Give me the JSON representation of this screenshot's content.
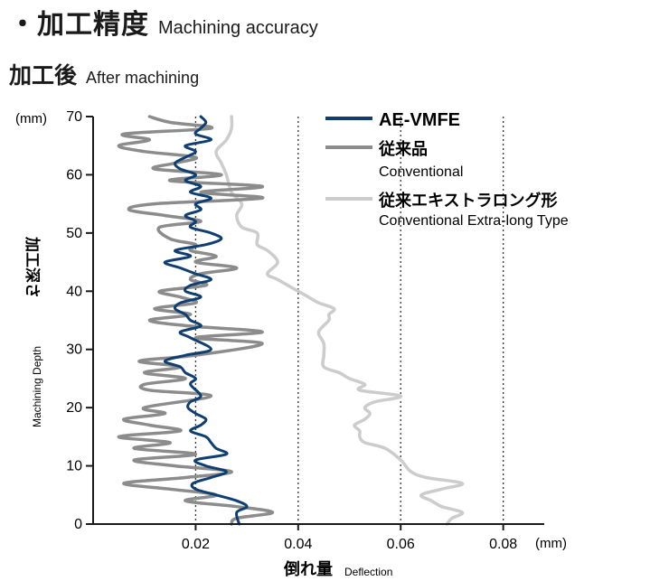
{
  "header": {
    "title_jp": "・加工精度",
    "title_en": "Machining accuracy",
    "subtitle_jp": "加工後",
    "subtitle_en": "After machining"
  },
  "chart_data": {
    "type": "line",
    "ylabel_jp": "加工深さ",
    "ylabel_en": "Machining Depth",
    "y_unit": "(mm)",
    "xlabel_jp": "倒れ量",
    "xlabel_en": "Deflection",
    "x_unit": "(mm)",
    "xlim": [
      0,
      0.088
    ],
    "ylim": [
      0,
      70
    ],
    "x_ticks": [
      "0.02",
      "0.04",
      "0.06",
      "0.08"
    ],
    "y_ticks": [
      "0",
      "10",
      "20",
      "30",
      "40",
      "50",
      "60",
      "70"
    ],
    "vertical_dotted_gridlines_at": [
      0.02,
      0.04,
      0.06,
      0.08
    ],
    "legend_position": "top-right",
    "series": [
      {
        "name": "AE-VMFE",
        "color": "#0f3f72",
        "points": [
          [
            0.0285,
            0
          ],
          [
            0.028,
            2
          ],
          [
            0.03,
            3
          ],
          [
            0.028,
            4
          ],
          [
            0.024,
            5
          ],
          [
            0.02,
            6
          ],
          [
            0.0195,
            7
          ],
          [
            0.023,
            8
          ],
          [
            0.026,
            9
          ],
          [
            0.022,
            10
          ],
          [
            0.02,
            11
          ],
          [
            0.026,
            12
          ],
          [
            0.024,
            13
          ],
          [
            0.023,
            14
          ],
          [
            0.022,
            15
          ],
          [
            0.019,
            16
          ],
          [
            0.021,
            17
          ],
          [
            0.022,
            18
          ],
          [
            0.02,
            19
          ],
          [
            0.0185,
            20
          ],
          [
            0.019,
            21
          ],
          [
            0.021,
            22
          ],
          [
            0.019,
            24
          ],
          [
            0.02,
            25
          ],
          [
            0.018,
            26
          ],
          [
            0.017,
            27
          ],
          [
            0.014,
            28
          ],
          [
            0.018,
            29
          ],
          [
            0.023,
            30
          ],
          [
            0.019,
            32
          ],
          [
            0.017,
            33
          ],
          [
            0.021,
            34
          ],
          [
            0.019,
            35
          ],
          [
            0.018,
            36
          ],
          [
            0.016,
            37
          ],
          [
            0.017,
            38
          ],
          [
            0.021,
            39
          ],
          [
            0.018,
            40
          ],
          [
            0.019,
            41
          ],
          [
            0.023,
            42
          ],
          [
            0.02,
            43
          ],
          [
            0.017,
            44
          ],
          [
            0.014,
            45
          ],
          [
            0.019,
            46
          ],
          [
            0.016,
            47
          ],
          [
            0.022,
            48
          ],
          [
            0.025,
            49
          ],
          [
            0.023,
            50
          ],
          [
            0.019,
            51
          ],
          [
            0.02,
            52
          ],
          [
            0.018,
            53
          ],
          [
            0.021,
            54
          ],
          [
            0.02,
            55
          ],
          [
            0.023,
            56
          ],
          [
            0.019,
            57
          ],
          [
            0.021,
            58
          ],
          [
            0.018,
            59
          ],
          [
            0.02,
            60
          ],
          [
            0.017,
            61
          ],
          [
            0.016,
            62
          ],
          [
            0.018,
            63
          ],
          [
            0.02,
            64
          ],
          [
            0.018,
            65
          ],
          [
            0.023,
            66
          ],
          [
            0.02,
            67
          ],
          [
            0.021,
            68
          ],
          [
            0.022,
            69
          ],
          [
            0.021,
            70
          ]
        ]
      },
      {
        "name": "従来品",
        "name_en": "Conventional",
        "color": "#8c8c8c",
        "points": [
          [
            0.027,
            0
          ],
          [
            0.028,
            1
          ],
          [
            0.035,
            2
          ],
          [
            0.028,
            3
          ],
          [
            0.018,
            4
          ],
          [
            0.024,
            5
          ],
          [
            0.015,
            6
          ],
          [
            0.006,
            7
          ],
          [
            0.018,
            8
          ],
          [
            0.027,
            9
          ],
          [
            0.016,
            10
          ],
          [
            0.008,
            11
          ],
          [
            0.02,
            12
          ],
          [
            0.008,
            13
          ],
          [
            0.015,
            14
          ],
          [
            0.005,
            15
          ],
          [
            0.017,
            16
          ],
          [
            0.011,
            17
          ],
          [
            0.006,
            18
          ],
          [
            0.014,
            19
          ],
          [
            0.01,
            20
          ],
          [
            0.023,
            22
          ],
          [
            0.011,
            23
          ],
          [
            0.01,
            24
          ],
          [
            0.018,
            25
          ],
          [
            0.01,
            26
          ],
          [
            0.017,
            27
          ],
          [
            0.009,
            28
          ],
          [
            0.02,
            29
          ],
          [
            0.033,
            31
          ],
          [
            0.02,
            32
          ],
          [
            0.033,
            33
          ],
          [
            0.019,
            34
          ],
          [
            0.011,
            35
          ],
          [
            0.019,
            36
          ],
          [
            0.012,
            37
          ],
          [
            0.02,
            38
          ],
          [
            0.017,
            39
          ],
          [
            0.013,
            40
          ],
          [
            0.022,
            41
          ],
          [
            0.019,
            42
          ],
          [
            0.021,
            43
          ],
          [
            0.028,
            44
          ],
          [
            0.02,
            45
          ],
          [
            0.024,
            46
          ],
          [
            0.019,
            47
          ],
          [
            0.02,
            48
          ],
          [
            0.015,
            49
          ],
          [
            0.013,
            51
          ],
          [
            0.021,
            52
          ],
          [
            0.014,
            53
          ],
          [
            0.007,
            54
          ],
          [
            0.012,
            55
          ],
          [
            0.033,
            56
          ],
          [
            0.021,
            57
          ],
          [
            0.033,
            58
          ],
          [
            0.015,
            59
          ],
          [
            0.025,
            60
          ],
          [
            0.012,
            61
          ],
          [
            0.016,
            62
          ],
          [
            0.02,
            63
          ],
          [
            0.01,
            64
          ],
          [
            0.005,
            65
          ],
          [
            0.011,
            66
          ],
          [
            0.006,
            67
          ],
          [
            0.023,
            68
          ],
          [
            0.015,
            69
          ],
          [
            0.011,
            70
          ]
        ]
      },
      {
        "name": "従来エキストラロング形",
        "name_en": "Conventional Extra-long Type",
        "color": "#cccccc",
        "points": [
          [
            0.069,
            0
          ],
          [
            0.07,
            1
          ],
          [
            0.072,
            2
          ],
          [
            0.068,
            3
          ],
          [
            0.066,
            4
          ],
          [
            0.064,
            5
          ],
          [
            0.068,
            6
          ],
          [
            0.072,
            7
          ],
          [
            0.065,
            8
          ],
          [
            0.062,
            9
          ],
          [
            0.06,
            11
          ],
          [
            0.057,
            13
          ],
          [
            0.053,
            14
          ],
          [
            0.052,
            15
          ],
          [
            0.052,
            16
          ],
          [
            0.051,
            17
          ],
          [
            0.053,
            18
          ],
          [
            0.054,
            19
          ],
          [
            0.053,
            20
          ],
          [
            0.055,
            21
          ],
          [
            0.06,
            22
          ],
          [
            0.052,
            23
          ],
          [
            0.053,
            24
          ],
          [
            0.05,
            25
          ],
          [
            0.048,
            26
          ],
          [
            0.045,
            27
          ],
          [
            0.045,
            29
          ],
          [
            0.045,
            31
          ],
          [
            0.044,
            33
          ],
          [
            0.046,
            35
          ],
          [
            0.046,
            36
          ],
          [
            0.047,
            37
          ],
          [
            0.044,
            38
          ],
          [
            0.042,
            39
          ],
          [
            0.04,
            40
          ],
          [
            0.036,
            42
          ],
          [
            0.034,
            43
          ],
          [
            0.036,
            45
          ],
          [
            0.034,
            47
          ],
          [
            0.032,
            48
          ],
          [
            0.032,
            50
          ],
          [
            0.029,
            51
          ],
          [
            0.028,
            53
          ],
          [
            0.029,
            55
          ],
          [
            0.027,
            57
          ],
          [
            0.026,
            60
          ],
          [
            0.025,
            62
          ],
          [
            0.024,
            64
          ],
          [
            0.026,
            66
          ],
          [
            0.027,
            68
          ],
          [
            0.027,
            70
          ]
        ]
      }
    ]
  }
}
